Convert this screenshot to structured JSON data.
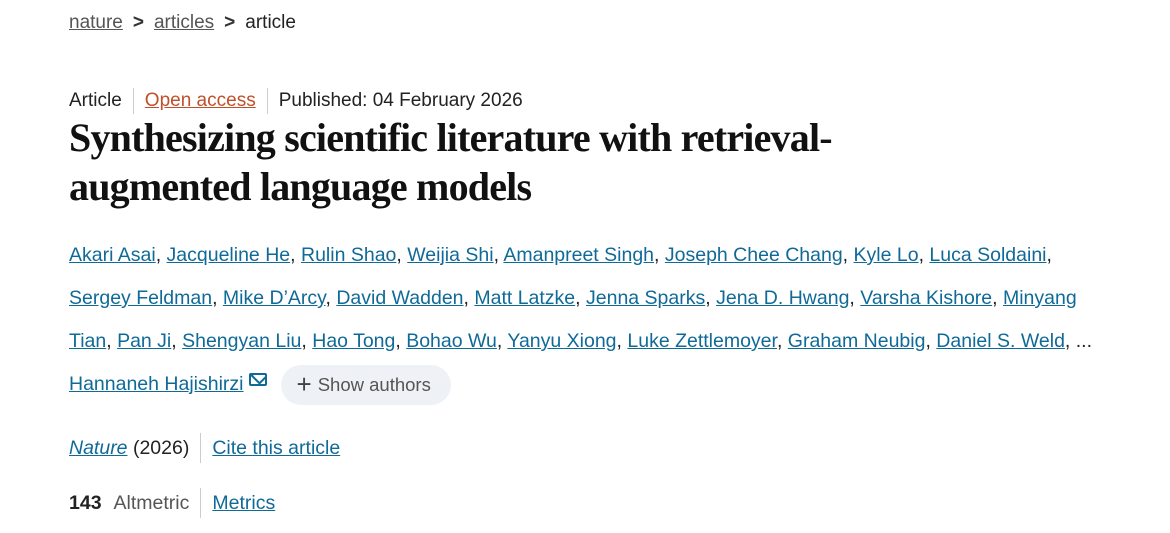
{
  "breadcrumb": {
    "items": [
      "nature",
      "articles"
    ],
    "current": "article",
    "separator": ">"
  },
  "meta": {
    "type": "Article",
    "access": "Open access",
    "published": "Published: 04 February 2026"
  },
  "title": "Synthesizing scientific literature with retrieval-augmented language models",
  "authors": [
    "Akari Asai",
    "Jacqueline He",
    "Rulin Shao",
    "Weijia Shi",
    "Amanpreet Singh",
    "Joseph Chee Chang",
    "Kyle Lo",
    "Luca Soldaini",
    "Sergey Feldman",
    "Mike D’Arcy",
    "David Wadden",
    "Matt Latzke",
    "Jenna Sparks",
    "Jena D. Hwang",
    "Varsha Kishore",
    "Minyang Tian",
    "Pan Ji",
    "Shengyan Liu",
    "Hao Tong",
    "Bohao Wu",
    "Yanyu Xiong",
    "Luke Zettlemoyer",
    "Graham Neubig",
    "Daniel S. Weld"
  ],
  "ellipsis": "...",
  "corresponding_author": "Hannaneh Hajishirzi",
  "show_authors": "Show authors",
  "citation": {
    "journal": "Nature",
    "year": "(2026)",
    "cite_link": "Cite this article"
  },
  "metrics": {
    "altmetric_score": "143",
    "altmetric_label": "Altmetric",
    "link": "Metrics"
  },
  "colors": {
    "link": "#0f6a98",
    "open_access": "#c0502a"
  }
}
